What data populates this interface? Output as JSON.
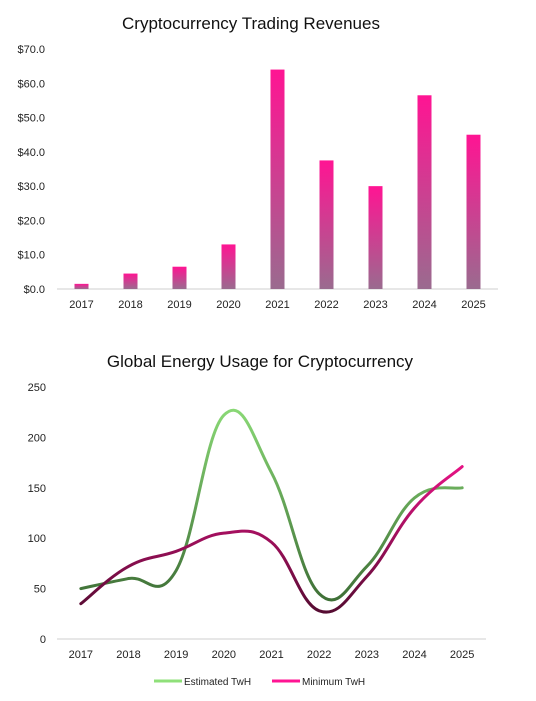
{
  "chart_data": [
    {
      "type": "bar",
      "title": "Cryptocurrency Trading Revenues",
      "categories": [
        "2017",
        "2018",
        "2019",
        "2020",
        "2021",
        "2022",
        "2023",
        "2024",
        "2025"
      ],
      "values": [
        1.5,
        4.5,
        6.5,
        13.0,
        64.0,
        37.5,
        30.0,
        56.5,
        45.0
      ],
      "ylim": [
        0,
        70
      ],
      "yticks": [
        "$0.0",
        "$10.0",
        "$20.0",
        "$30.0",
        "$40.0",
        "$50.0",
        "$60.0",
        "$70.0"
      ],
      "ytick_values": [
        0,
        10,
        20,
        30,
        40,
        50,
        60,
        70
      ],
      "xlabel": "",
      "ylabel": "",
      "grid": false,
      "colors": {
        "bar_top": "#ff1493",
        "bar_bottom": "#9a6b8f"
      }
    },
    {
      "type": "line",
      "title": "Global Energy Usage for Cryptocurrency",
      "categories": [
        "2017",
        "2018",
        "2019",
        "2020",
        "2021",
        "2022",
        "2023",
        "2024",
        "2025"
      ],
      "series": [
        {
          "name": "Estimated TwH",
          "values": [
            50,
            60,
            68,
            222,
            165,
            45,
            72,
            140,
            150
          ],
          "color_top": "#8fe07a",
          "color_bottom": "#2f5a2a"
        },
        {
          "name": "Minimum TwH",
          "values": [
            35,
            72,
            87,
            105,
            96,
            28,
            62,
            130,
            171
          ],
          "color_top": "#ff1493",
          "color_bottom": "#3a0a22"
        }
      ],
      "ylim": [
        0,
        250
      ],
      "yticks": [
        "0",
        "50",
        "100",
        "150",
        "200",
        "250"
      ],
      "ytick_values": [
        0,
        50,
        100,
        150,
        200,
        250
      ],
      "xlabel": "",
      "ylabel": "",
      "grid": false,
      "legend": "bottom"
    }
  ]
}
